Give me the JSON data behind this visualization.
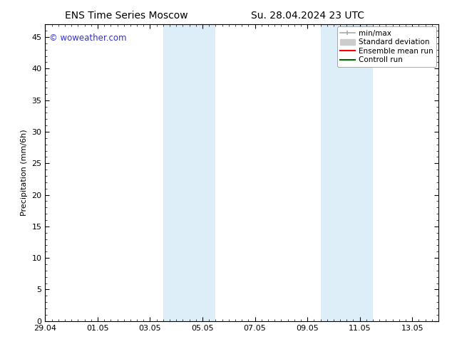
{
  "title_left": "ENS Time Series Moscow",
  "title_right": "Su. 28.04.2024 23 UTC",
  "ylabel": "Precipitation (mm/6h)",
  "ylim": [
    0,
    47
  ],
  "yticks": [
    0,
    5,
    10,
    15,
    20,
    25,
    30,
    35,
    40,
    45
  ],
  "xtick_labels": [
    "29.04",
    "01.05",
    "03.05",
    "05.05",
    "07.05",
    "09.05",
    "11.05",
    "13.05"
  ],
  "xtick_positions": [
    0,
    2,
    4,
    6,
    8,
    10,
    12,
    14
  ],
  "xlim": [
    0,
    15
  ],
  "shaded_regions": [
    {
      "xstart": 4.5,
      "xend": 6.5,
      "color": "#ddeef8"
    },
    {
      "xstart": 10.5,
      "xend": 12.5,
      "color": "#ddeef8"
    }
  ],
  "watermark": "© woweather.com",
  "watermark_color": "#3333cc",
  "bg_color": "#ffffff",
  "spine_color": "#000000",
  "title_fontsize": 10,
  "tick_fontsize": 8,
  "ylabel_fontsize": 8,
  "legend_fontsize": 7.5,
  "minmax_color": "#aaaaaa",
  "std_color": "#cccccc",
  "ens_color": "#ff0000",
  "ctrl_color": "#006600"
}
